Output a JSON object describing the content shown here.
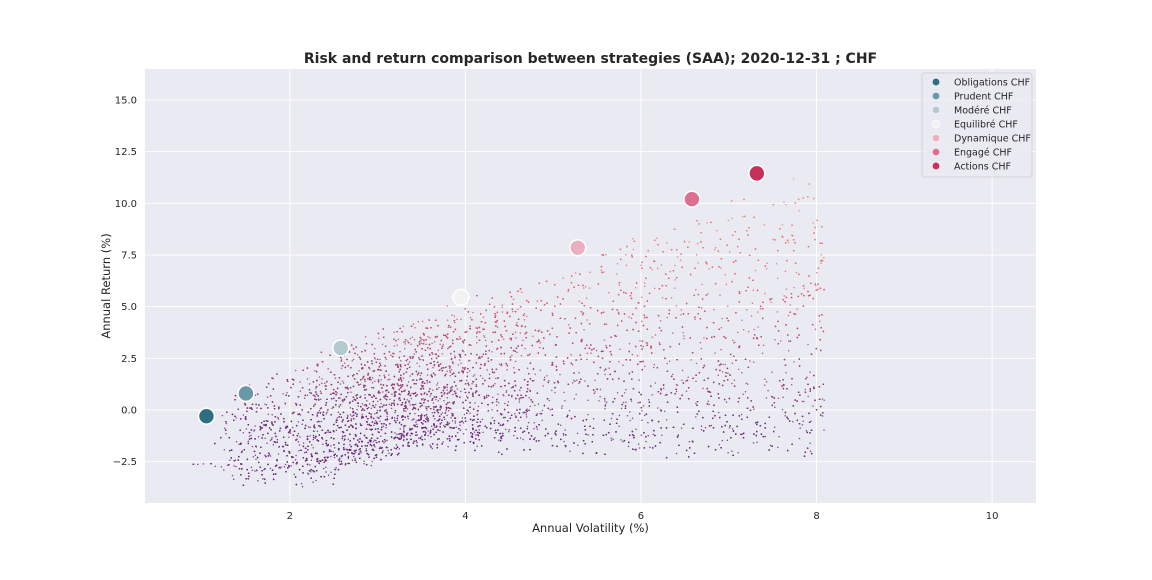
{
  "chart_data": {
    "type": "scatter",
    "title": "Risk and return comparison between strategies (SAA); 2020-12-31 ; CHF",
    "xlabel": "Annual Volatility (%)",
    "ylabel": "Annual Return (%)",
    "xlim": [
      0.35,
      10.5
    ],
    "ylim": [
      -4.5,
      16.5
    ],
    "xticks": [
      2,
      4,
      6,
      8,
      10
    ],
    "yticks": [
      -2.5,
      0.0,
      2.5,
      5.0,
      7.5,
      10.0,
      12.5,
      15.0
    ],
    "ytick_labels": [
      "−2.5",
      "0.0",
      "2.5",
      "5.0",
      "7.5",
      "10.0",
      "12.5",
      "15.0"
    ],
    "grid": true,
    "legend_position": "top-right",
    "background": {
      "description": "dense cloud of simulated random portfolios, colored by return (purple low, orange high)",
      "color_low": "#6b2a7a",
      "color_mid": "#e05a6a",
      "color_high": "#f7a26a"
    },
    "series": [
      {
        "name": "Obligations CHF",
        "x": 1.05,
        "y": -0.3,
        "color": "#2d6e80"
      },
      {
        "name": "Prudent CHF",
        "x": 1.5,
        "y": 0.8,
        "color": "#6a98a8"
      },
      {
        "name": "Modéré CHF",
        "x": 2.58,
        "y": 3.0,
        "color": "#b3c9d2"
      },
      {
        "name": "Equilibré CHF",
        "x": 3.95,
        "y": 5.45,
        "color": "#f2f2f2"
      },
      {
        "name": "Dynamique CHF",
        "x": 5.28,
        "y": 7.85,
        "color": "#eab0c0"
      },
      {
        "name": "Engagé CHF",
        "x": 6.58,
        "y": 10.2,
        "color": "#dd7090"
      },
      {
        "name": "Actions CHF",
        "x": 7.32,
        "y": 11.45,
        "color": "#c7305a"
      }
    ]
  }
}
